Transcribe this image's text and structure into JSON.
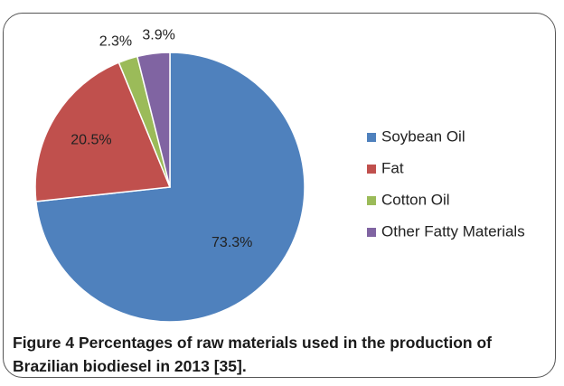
{
  "chart_data": {
    "type": "pie",
    "categories": [
      "Soybean Oil",
      "Fat",
      "Cotton Oil",
      "Other Fatty Materials"
    ],
    "values": [
      73.3,
      20.5,
      2.3,
      3.9
    ],
    "data_labels": [
      "73.3%",
      "20.5%",
      "2.3%",
      "3.9%"
    ],
    "colors": [
      "#4f81bd",
      "#c0504d",
      "#9bbb59",
      "#8064a2"
    ],
    "start_angle_deg": 0,
    "direction": "clockwise",
    "legend_position": "right"
  },
  "caption": {
    "label": "Figure 4",
    "text": "Percentages of raw materials used in the production of Brazilian biodiesel in 2013 [35]."
  }
}
